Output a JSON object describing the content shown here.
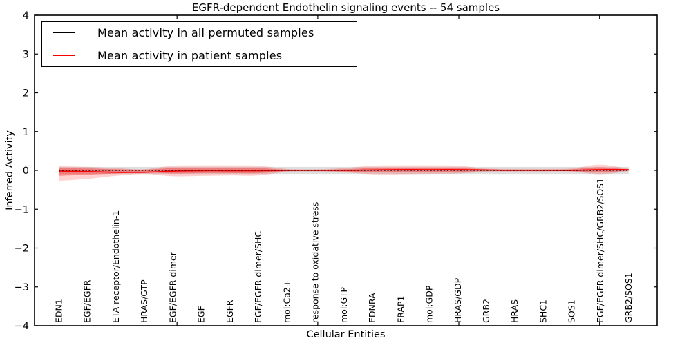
{
  "figure": {
    "title": "EGFR-dependent Endothelin signaling events -- 54 samples",
    "xlabel": "Cellular Entities",
    "ylabel": "Inferred Activity"
  },
  "legend": {
    "items": [
      {
        "label": "Mean activity in all permuted samples",
        "color": "#000000"
      },
      {
        "label": "Mean activity in patient samples",
        "color": "#ff0000"
      }
    ]
  },
  "chart_data": {
    "type": "line",
    "title": "EGFR-dependent Endothelin signaling events -- 54 samples",
    "xlabel": "Cellular Entities",
    "ylabel": "Inferred Activity",
    "ylim": [
      -4,
      4
    ],
    "xlim": [
      -0.85,
      21.0
    ],
    "grid": false,
    "legend_position": "upper left",
    "y_tick_values": [
      4,
      3,
      2,
      1,
      0,
      -1,
      -2,
      -3,
      -4
    ],
    "y_tick_labels": [
      "4",
      "3",
      "2",
      "1",
      "0",
      "−1",
      "−2",
      "−3",
      "−4"
    ],
    "x_tick_positions": [
      4.15,
      9.09,
      14.04,
      18.98
    ],
    "categories": [
      "EDN1",
      "EGF/EGFR",
      "ETA receptor/Endothelin-1",
      "HRAS/GTP",
      "EGF/EGFR dimer",
      "EGF",
      "EGFR",
      "EGF/EGFR dimer/SHC",
      "mol:Ca2+",
      "response to oxidative stress",
      "mol:GTP",
      "EDNRA",
      "FRAP1",
      "mol:GDP",
      "HRAS/GDP",
      "GRB2",
      "HRAS",
      "SHC1",
      "SOS1",
      "EGF/EGFR dimer/SHC/GRB2/SOS1",
      "GRB2/SOS1"
    ],
    "series": [
      {
        "name": "Mean activity in all permuted samples",
        "color": "#000000",
        "style": "dashed",
        "values": [
          0,
          0,
          0,
          0,
          0,
          0,
          0,
          0,
          0,
          0,
          0,
          0,
          0,
          0,
          0,
          0,
          0,
          0,
          0,
          0,
          0
        ]
      },
      {
        "name": "Mean activity in patient samples",
        "color": "#ff0000",
        "style": "solid",
        "values": [
          -0.02,
          -0.03,
          -0.05,
          -0.05,
          -0.02,
          -0.01,
          -0.01,
          -0.01,
          0,
          0,
          0,
          0.01,
          0.02,
          0.02,
          0.02,
          0.01,
          0,
          0,
          0,
          0.02,
          0.02
        ]
      }
    ],
    "bands": [
      {
        "name": "permuted-samples-range",
        "color": "#999999",
        "opacity": 0.3,
        "upper": [
          0.09,
          0.09,
          0.09,
          0.09,
          0.09,
          0.09,
          0.09,
          0.09,
          0.09,
          0.09,
          0.09,
          0.09,
          0.09,
          0.09,
          0.09,
          0.09,
          0.09,
          0.09,
          0.09,
          0.09,
          0.09
        ],
        "lower": [
          -0.09,
          -0.09,
          -0.09,
          -0.09,
          -0.09,
          -0.09,
          -0.09,
          -0.09,
          -0.09,
          -0.09,
          -0.09,
          -0.09,
          -0.09,
          -0.09,
          -0.09,
          -0.09,
          -0.09,
          -0.09,
          -0.09,
          -0.09,
          -0.09
        ]
      },
      {
        "name": "patient-samples-outer-band",
        "color": "#ff0000",
        "opacity": 0.18,
        "upper": [
          0.11,
          0.09,
          0.06,
          0.03,
          0.12,
          0.13,
          0.13,
          0.12,
          0.04,
          0.03,
          0.06,
          0.12,
          0.13,
          0.13,
          0.12,
          0.05,
          0.04,
          0.04,
          0.05,
          0.15,
          0.04
        ],
        "lower": [
          -0.27,
          -0.22,
          -0.14,
          -0.09,
          -0.15,
          -0.14,
          -0.13,
          -0.13,
          -0.04,
          -0.03,
          -0.05,
          -0.1,
          -0.1,
          -0.09,
          -0.08,
          -0.04,
          -0.03,
          -0.03,
          -0.03,
          -0.1,
          -0.02
        ]
      },
      {
        "name": "patient-samples-inner-band",
        "color": "#ff0000",
        "opacity": 0.32,
        "upper": [
          0.06,
          0.05,
          0.03,
          0.02,
          0.06,
          0.07,
          0.06,
          0.06,
          0.02,
          0.015,
          0.03,
          0.06,
          0.07,
          0.07,
          0.06,
          0.03,
          0.02,
          0.02,
          0.03,
          0.08,
          0.02
        ],
        "lower": [
          -0.14,
          -0.11,
          -0.08,
          -0.05,
          -0.08,
          -0.07,
          -0.07,
          -0.07,
          -0.02,
          -0.015,
          -0.03,
          -0.05,
          -0.05,
          -0.05,
          -0.04,
          -0.02,
          -0.015,
          -0.015,
          -0.02,
          -0.05,
          -0.01
        ]
      }
    ]
  }
}
